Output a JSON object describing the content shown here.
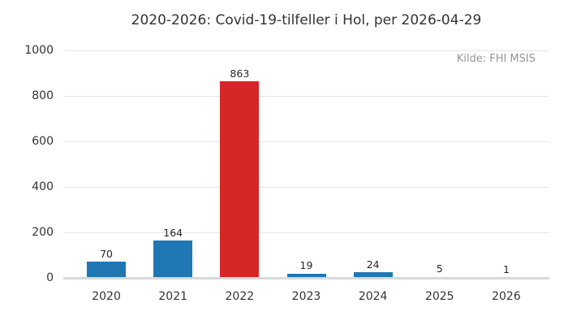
{
  "chart_data": {
    "type": "bar",
    "title": "2020-2026: Covid-19-tilfeller i Hol, per 2026-04-29",
    "source": "Kilde: FHI MSIS",
    "categories": [
      "2020",
      "2021",
      "2022",
      "2023",
      "2024",
      "2025",
      "2026"
    ],
    "values": [
      70,
      164,
      863,
      19,
      24,
      5,
      1
    ],
    "bar_labels": [
      "70",
      "164",
      "863",
      "19",
      "24",
      "5",
      "1"
    ],
    "bar_colors": [
      "#2077b4",
      "#2077b4",
      "#d62728",
      "#2077b4",
      "#2077b4",
      "#2077b4",
      "#2077b4"
    ],
    "xlabel": "",
    "ylabel": "",
    "ylim": [
      0,
      1000
    ],
    "yticks": [
      0,
      200,
      400,
      600,
      800,
      1000
    ],
    "grid": "horizontal-light",
    "legend": "none",
    "annotations": "value labels above bars"
  },
  "style": {
    "bar_default_color": "#2077b4",
    "bar_highlight_color": "#d62728",
    "grid_color": "#e6e6e6",
    "baseline_color": "#d9d9d9",
    "text_color": "#333333",
    "value_label_color": "#262626",
    "muted_text_color": "#969696",
    "background": "#ffffff"
  }
}
